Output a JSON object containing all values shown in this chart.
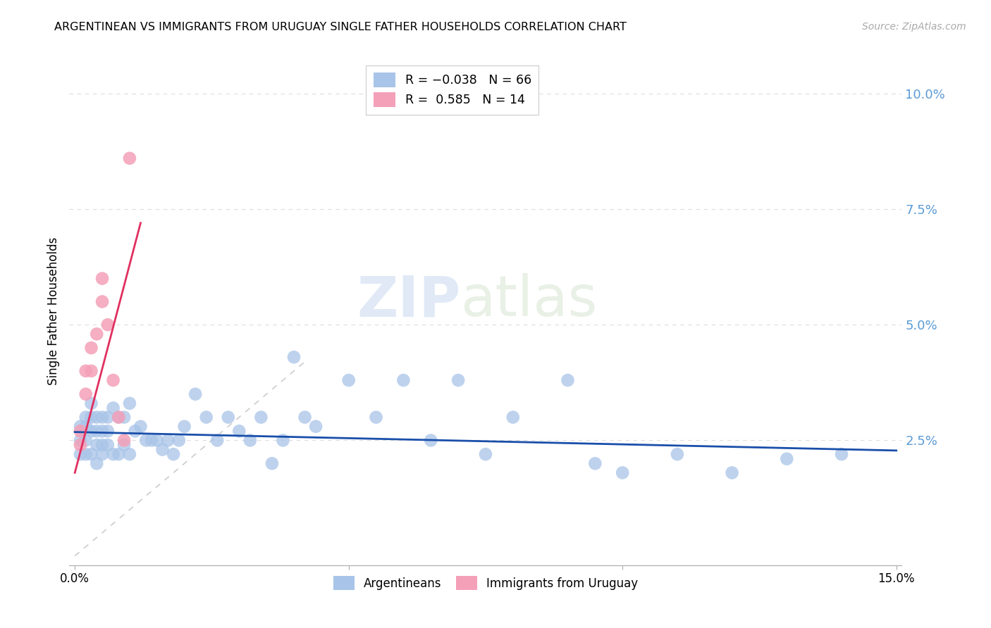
{
  "title": "ARGENTINEAN VS IMMIGRANTS FROM URUGUAY SINGLE FATHER HOUSEHOLDS CORRELATION CHART",
  "source": "Source: ZipAtlas.com",
  "ylabel": "Single Father Households",
  "xlim": [
    0.0,
    0.15
  ],
  "ylim": [
    0.0,
    0.105
  ],
  "ytick_vals": [
    0.025,
    0.05,
    0.075,
    0.1
  ],
  "ytick_labels": [
    "2.5%",
    "5.0%",
    "7.5%",
    "10.0%"
  ],
  "xtick_vals": [
    0.0,
    0.05,
    0.1,
    0.15
  ],
  "xtick_labels": [
    "0.0%",
    "",
    "",
    "15.0%"
  ],
  "blue_scatter_color": "#a8c4e8",
  "pink_scatter_color": "#f4a0b8",
  "blue_line_color": "#1a4faa",
  "pink_line_color": "#e03060",
  "diag_line_color": "#cccccc",
  "grid_color": "#dddddd",
  "right_axis_color": "#5b9bd5",
  "blue_R": -0.038,
  "blue_N": 66,
  "pink_R": 0.585,
  "pink_N": 14,
  "watermark": "ZIPatlas",
  "blue_x": [
    0.001,
    0.001,
    0.001,
    0.002,
    0.002,
    0.002,
    0.002,
    0.003,
    0.003,
    0.003,
    0.003,
    0.004,
    0.004,
    0.004,
    0.004,
    0.005,
    0.005,
    0.005,
    0.005,
    0.006,
    0.006,
    0.006,
    0.007,
    0.007,
    0.008,
    0.008,
    0.009,
    0.009,
    0.01,
    0.01,
    0.011,
    0.012,
    0.013,
    0.014,
    0.015,
    0.016,
    0.017,
    0.018,
    0.019,
    0.02,
    0.022,
    0.024,
    0.026,
    0.028,
    0.03,
    0.032,
    0.034,
    0.036,
    0.038,
    0.04,
    0.042,
    0.044,
    0.05,
    0.055,
    0.06,
    0.065,
    0.07,
    0.075,
    0.08,
    0.09,
    0.095,
    0.1,
    0.11,
    0.12,
    0.13,
    0.14
  ],
  "blue_y": [
    0.025,
    0.028,
    0.022,
    0.03,
    0.028,
    0.025,
    0.022,
    0.033,
    0.03,
    0.027,
    0.022,
    0.03,
    0.027,
    0.024,
    0.02,
    0.03,
    0.027,
    0.024,
    0.022,
    0.03,
    0.027,
    0.024,
    0.032,
    0.022,
    0.03,
    0.022,
    0.03,
    0.024,
    0.033,
    0.022,
    0.027,
    0.028,
    0.025,
    0.025,
    0.025,
    0.023,
    0.025,
    0.022,
    0.025,
    0.028,
    0.035,
    0.03,
    0.025,
    0.03,
    0.027,
    0.025,
    0.03,
    0.02,
    0.025,
    0.043,
    0.03,
    0.028,
    0.038,
    0.03,
    0.038,
    0.025,
    0.038,
    0.022,
    0.03,
    0.038,
    0.02,
    0.018,
    0.022,
    0.018,
    0.021,
    0.022
  ],
  "pink_x": [
    0.001,
    0.001,
    0.002,
    0.002,
    0.003,
    0.003,
    0.004,
    0.005,
    0.005,
    0.006,
    0.007,
    0.008,
    0.009,
    0.01
  ],
  "pink_y": [
    0.024,
    0.027,
    0.035,
    0.04,
    0.04,
    0.045,
    0.048,
    0.06,
    0.055,
    0.05,
    0.038,
    0.03,
    0.025,
    0.086
  ],
  "blue_line_x": [
    0.0,
    0.15
  ],
  "blue_line_y": [
    0.0268,
    0.0228
  ],
  "pink_line_x": [
    0.0,
    0.012
  ],
  "pink_line_y": [
    0.018,
    0.072
  ],
  "diag_line_x": [
    0.0,
    0.042
  ],
  "diag_line_y": [
    0.0,
    0.042
  ]
}
